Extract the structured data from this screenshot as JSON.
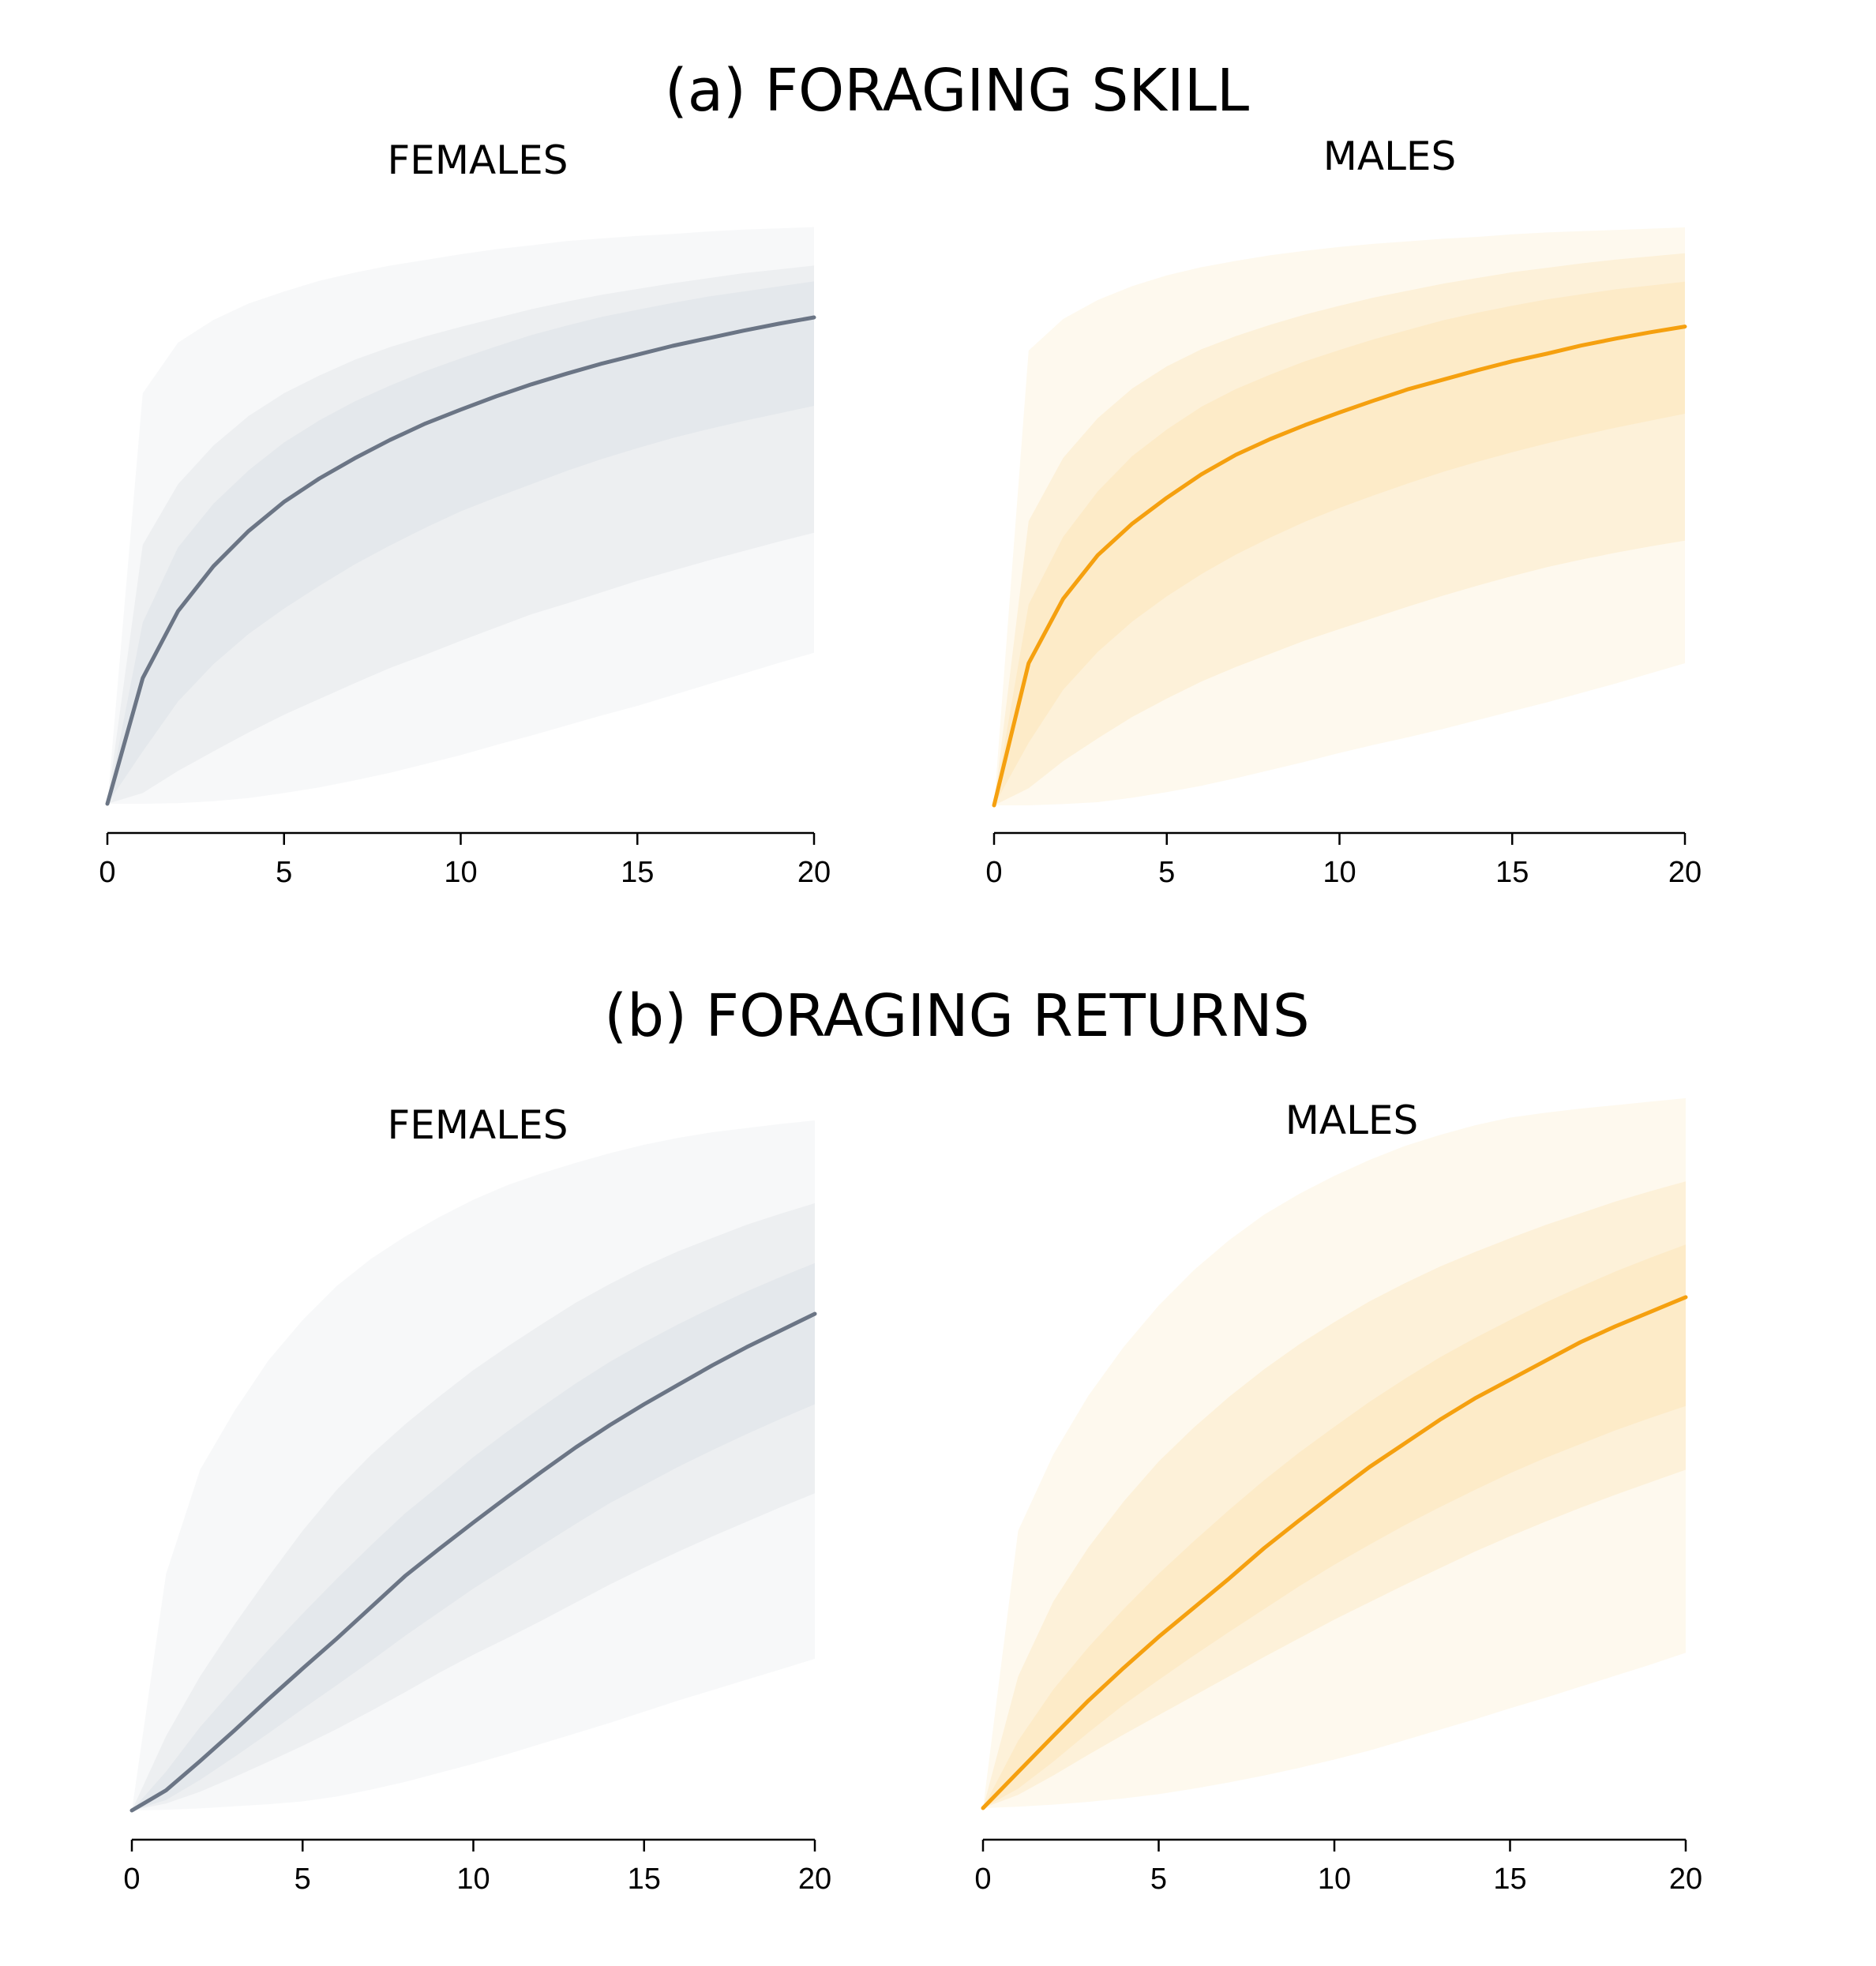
{
  "sections": [
    {
      "label": "(a) FORAGING SKILL"
    },
    {
      "label": "(b) FORAGING RETURNS"
    }
  ],
  "colors": {
    "females_line": "#6b7585",
    "males_line": "#f5a00f",
    "females_band": "#dfe3e8",
    "males_band": "#fde6bd"
  },
  "chart_data": [
    {
      "type": "area",
      "section": "(a) FORAGING SKILL",
      "title": "FEMALES",
      "xlabel": "",
      "ylabel": "",
      "xlim": [
        0,
        20
      ],
      "ylim": [
        0,
        1
      ],
      "x_ticks": [
        0,
        5,
        10,
        15,
        20
      ],
      "y_axis_shown": false,
      "grid": false,
      "legend": "none",
      "color": "females",
      "x": [
        0,
        1,
        2,
        3,
        4,
        5,
        6,
        7,
        8,
        9,
        10,
        11,
        12,
        13,
        14,
        15,
        16,
        17,
        18,
        19,
        20
      ],
      "median": [
        0.0,
        0.199,
        0.305,
        0.376,
        0.432,
        0.478,
        0.515,
        0.547,
        0.576,
        0.602,
        0.624,
        0.645,
        0.664,
        0.681,
        0.697,
        0.711,
        0.725,
        0.737,
        0.749,
        0.76,
        0.77
      ],
      "bands": [
        {
          "lower": [
            0.0,
            0.0,
            0.001,
            0.004,
            0.009,
            0.017,
            0.026,
            0.037,
            0.049,
            0.063,
            0.077,
            0.093,
            0.108,
            0.124,
            0.14,
            0.155,
            0.172,
            0.189,
            0.206,
            0.223,
            0.239
          ],
          "upper": [
            0.0,
            0.65,
            0.73,
            0.766,
            0.792,
            0.811,
            0.828,
            0.841,
            0.852,
            0.861,
            0.87,
            0.878,
            0.884,
            0.891,
            0.895,
            0.899,
            0.902,
            0.906,
            0.909,
            0.911,
            0.913
          ]
        },
        {
          "lower": [
            0.0,
            0.017,
            0.052,
            0.083,
            0.113,
            0.141,
            0.166,
            0.191,
            0.215,
            0.236,
            0.258,
            0.279,
            0.3,
            0.317,
            0.335,
            0.353,
            0.369,
            0.385,
            0.4,
            0.415,
            0.429
          ],
          "upper": [
            0.0,
            0.41,
            0.506,
            0.567,
            0.614,
            0.65,
            0.678,
            0.703,
            0.723,
            0.74,
            0.755,
            0.769,
            0.783,
            0.795,
            0.806,
            0.815,
            0.824,
            0.832,
            0.84,
            0.846,
            0.852
          ]
        },
        {
          "lower": [
            0.0,
            0.083,
            0.162,
            0.221,
            0.269,
            0.309,
            0.345,
            0.379,
            0.409,
            0.437,
            0.463,
            0.485,
            0.506,
            0.527,
            0.546,
            0.563,
            0.579,
            0.593,
            0.606,
            0.618,
            0.63
          ],
          "upper": [
            0.0,
            0.287,
            0.406,
            0.475,
            0.528,
            0.572,
            0.607,
            0.637,
            0.662,
            0.685,
            0.705,
            0.724,
            0.742,
            0.757,
            0.771,
            0.782,
            0.793,
            0.803,
            0.811,
            0.819,
            0.827
          ]
        }
      ]
    },
    {
      "type": "area",
      "section": "(a) FORAGING SKILL",
      "title": "MALES",
      "xlabel": "",
      "ylabel": "",
      "xlim": [
        0,
        20
      ],
      "ylim": [
        0,
        1
      ],
      "x_ticks": [
        0,
        5,
        10,
        15,
        20
      ],
      "y_axis_shown": false,
      "grid": false,
      "legend": "none",
      "color": "males",
      "x": [
        0,
        1,
        2,
        3,
        4,
        5,
        6,
        7,
        8,
        9,
        10,
        11,
        12,
        13,
        14,
        15,
        16,
        17,
        18,
        19,
        20
      ],
      "median": [
        0.0,
        0.225,
        0.327,
        0.396,
        0.446,
        0.487,
        0.524,
        0.555,
        0.58,
        0.602,
        0.622,
        0.641,
        0.659,
        0.674,
        0.689,
        0.703,
        0.715,
        0.728,
        0.739,
        0.749,
        0.758
      ],
      "bands": [
        {
          "lower": [
            0.0,
            0.0,
            0.002,
            0.005,
            0.012,
            0.021,
            0.031,
            0.043,
            0.056,
            0.069,
            0.083,
            0.096,
            0.108,
            0.121,
            0.135,
            0.149,
            0.163,
            0.178,
            0.193,
            0.209,
            0.225
          ],
          "upper": [
            0.0,
            0.72,
            0.77,
            0.8,
            0.822,
            0.839,
            0.852,
            0.862,
            0.871,
            0.878,
            0.884,
            0.889,
            0.893,
            0.897,
            0.9,
            0.904,
            0.907,
            0.909,
            0.911,
            0.913,
            0.915
          ]
        },
        {
          "lower": [
            0.0,
            0.027,
            0.07,
            0.106,
            0.14,
            0.169,
            0.196,
            0.219,
            0.24,
            0.261,
            0.279,
            0.297,
            0.315,
            0.332,
            0.348,
            0.363,
            0.377,
            0.389,
            0.4,
            0.41,
            0.419
          ],
          "upper": [
            0.0,
            0.45,
            0.55,
            0.613,
            0.66,
            0.695,
            0.722,
            0.743,
            0.761,
            0.777,
            0.791,
            0.804,
            0.815,
            0.826,
            0.835,
            0.844,
            0.851,
            0.858,
            0.864,
            0.869,
            0.874
          ]
        },
        {
          "lower": [
            0.0,
            0.099,
            0.183,
            0.243,
            0.291,
            0.331,
            0.366,
            0.397,
            0.424,
            0.449,
            0.471,
            0.491,
            0.51,
            0.528,
            0.544,
            0.559,
            0.573,
            0.586,
            0.598,
            0.609,
            0.62
          ],
          "upper": [
            0.0,
            0.318,
            0.425,
            0.497,
            0.553,
            0.595,
            0.631,
            0.659,
            0.682,
            0.703,
            0.721,
            0.738,
            0.753,
            0.768,
            0.78,
            0.791,
            0.801,
            0.809,
            0.817,
            0.823,
            0.829
          ]
        }
      ]
    },
    {
      "type": "area",
      "section": "(b) FORAGING RETURNS",
      "title": "FEMALES",
      "xlabel": "",
      "ylabel": "",
      "xlim": [
        0,
        20
      ],
      "ylim": [
        0,
        1
      ],
      "x_ticks": [
        0,
        5,
        10,
        15,
        20
      ],
      "y_axis_shown": false,
      "grid": false,
      "legend": "none",
      "color": "females",
      "x": [
        0,
        1,
        2,
        3,
        4,
        5,
        6,
        7,
        8,
        9,
        10,
        11,
        12,
        13,
        14,
        15,
        16,
        17,
        18,
        19,
        20
      ],
      "median": [
        0.0,
        0.029,
        0.071,
        0.115,
        0.16,
        0.204,
        0.247,
        0.292,
        0.337,
        0.376,
        0.414,
        0.451,
        0.487,
        0.522,
        0.554,
        0.584,
        0.612,
        0.64,
        0.666,
        0.69,
        0.714
      ],
      "bands": [
        {
          "lower": [
            0.0,
            0.001,
            0.003,
            0.006,
            0.009,
            0.013,
            0.02,
            0.03,
            0.041,
            0.054,
            0.067,
            0.081,
            0.096,
            0.111,
            0.126,
            0.142,
            0.158,
            0.173,
            0.188,
            0.203,
            0.218
          ],
          "upper": [
            0.0,
            0.34,
            0.49,
            0.574,
            0.647,
            0.705,
            0.754,
            0.793,
            0.825,
            0.853,
            0.878,
            0.899,
            0.916,
            0.931,
            0.945,
            0.957,
            0.967,
            0.975,
            0.981,
            0.987,
            0.992
          ]
        },
        {
          "lower": [
            0.0,
            0.01,
            0.027,
            0.048,
            0.07,
            0.093,
            0.117,
            0.143,
            0.17,
            0.198,
            0.224,
            0.248,
            0.273,
            0.299,
            0.325,
            0.349,
            0.372,
            0.394,
            0.415,
            0.436,
            0.456
          ],
          "upper": [
            0.0,
            0.107,
            0.193,
            0.267,
            0.336,
            0.402,
            0.461,
            0.511,
            0.555,
            0.595,
            0.633,
            0.667,
            0.699,
            0.73,
            0.757,
            0.782,
            0.804,
            0.823,
            0.842,
            0.858,
            0.873
          ]
        },
        {
          "lower": [
            0.0,
            0.015,
            0.044,
            0.077,
            0.111,
            0.146,
            0.18,
            0.215,
            0.251,
            0.285,
            0.319,
            0.35,
            0.381,
            0.412,
            0.442,
            0.468,
            0.494,
            0.518,
            0.541,
            0.563,
            0.584
          ],
          "upper": [
            0.0,
            0.056,
            0.12,
            0.176,
            0.231,
            0.283,
            0.333,
            0.381,
            0.427,
            0.467,
            0.508,
            0.545,
            0.58,
            0.614,
            0.645,
            0.673,
            0.699,
            0.723,
            0.746,
            0.767,
            0.787
          ]
        }
      ]
    },
    {
      "type": "area",
      "section": "(b) FORAGING RETURNS",
      "title": "MALES",
      "xlabel": "",
      "ylabel": "",
      "xlim": [
        0,
        20
      ],
      "ylim": [
        0,
        1
      ],
      "x_ticks": [
        0,
        5,
        10,
        15,
        20
      ],
      "y_axis_shown": false,
      "grid": false,
      "legend": "none",
      "color": "males",
      "x": [
        0,
        1,
        2,
        3,
        4,
        5,
        6,
        7,
        8,
        9,
        10,
        11,
        12,
        13,
        14,
        15,
        16,
        17,
        18,
        19,
        20
      ],
      "median": [
        0.0,
        0.052,
        0.104,
        0.155,
        0.202,
        0.247,
        0.289,
        0.331,
        0.375,
        0.415,
        0.454,
        0.492,
        0.526,
        0.56,
        0.591,
        0.618,
        0.645,
        0.672,
        0.695,
        0.716,
        0.737
      ],
      "bands": [
        {
          "lower": [
            0.0,
            0.002,
            0.005,
            0.009,
            0.014,
            0.02,
            0.028,
            0.037,
            0.047,
            0.058,
            0.07,
            0.083,
            0.098,
            0.113,
            0.128,
            0.144,
            0.159,
            0.175,
            0.191,
            0.207,
            0.224
          ],
          "upper": [
            0.0,
            0.4,
            0.51,
            0.595,
            0.665,
            0.725,
            0.776,
            0.819,
            0.856,
            0.886,
            0.912,
            0.935,
            0.955,
            0.971,
            0.985,
            0.996,
            1.003,
            1.009,
            1.014,
            1.019,
            1.024
          ]
        },
        {
          "lower": [
            0.0,
            0.019,
            0.047,
            0.077,
            0.106,
            0.134,
            0.162,
            0.19,
            0.218,
            0.245,
            0.272,
            0.297,
            0.322,
            0.346,
            0.37,
            0.392,
            0.413,
            0.433,
            0.452,
            0.47,
            0.488
          ],
          "upper": [
            0.0,
            0.19,
            0.298,
            0.376,
            0.442,
            0.5,
            0.549,
            0.593,
            0.633,
            0.669,
            0.701,
            0.731,
            0.757,
            0.781,
            0.802,
            0.822,
            0.841,
            0.858,
            0.875,
            0.89,
            0.904
          ]
        },
        {
          "lower": [
            0.0,
            0.028,
            0.067,
            0.109,
            0.149,
            0.185,
            0.22,
            0.254,
            0.287,
            0.32,
            0.351,
            0.38,
            0.408,
            0.434,
            0.459,
            0.483,
            0.505,
            0.525,
            0.545,
            0.563,
            0.58
          ],
          "upper": [
            0.0,
            0.097,
            0.171,
            0.232,
            0.287,
            0.338,
            0.385,
            0.43,
            0.473,
            0.513,
            0.55,
            0.586,
            0.619,
            0.65,
            0.678,
            0.704,
            0.729,
            0.752,
            0.774,
            0.794,
            0.813
          ]
        }
      ]
    }
  ]
}
